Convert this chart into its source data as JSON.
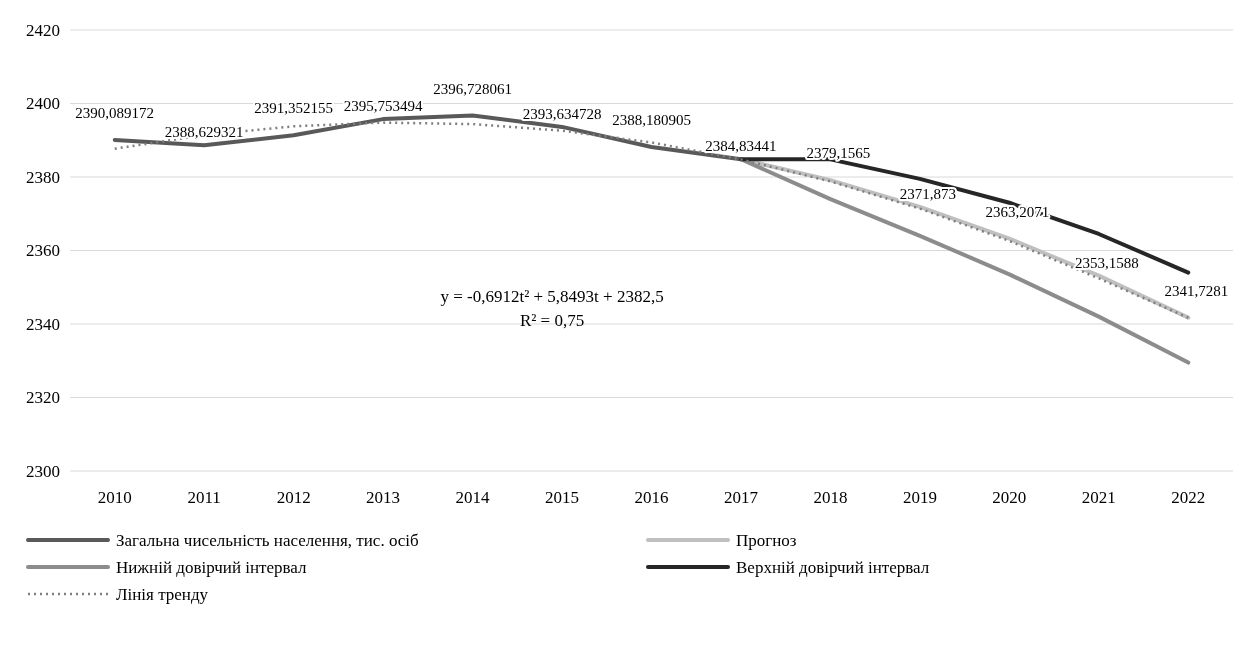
{
  "chart_data": {
    "type": "line",
    "categories": [
      "2010",
      "2011",
      "2012",
      "2013",
      "2014",
      "2015",
      "2016",
      "2017",
      "2018",
      "2019",
      "2020",
      "2021",
      "2022"
    ],
    "ylim": [
      2300,
      2420
    ],
    "yticks": [
      2300,
      2320,
      2340,
      2360,
      2380,
      2400,
      2420
    ],
    "grid": "y",
    "legend": "bottom",
    "annotations": [
      "y = -0,6912t² + 5,8493t + 2382,5",
      "R² = 0,75"
    ],
    "series": [
      {
        "name": "Загальна чисельність населення, тис. осіб",
        "color": "#595959",
        "values": [
          2390.089172,
          2388.629321,
          2391.352155,
          2395.753494,
          2396.728061,
          2393.634728,
          2388.180905,
          2384.83441,
          null,
          null,
          null,
          null,
          null
        ],
        "value_labels": [
          "2390,089172",
          "2388,629321",
          "2391,352155",
          "2395,753494",
          "2396,728061",
          "2393,634728",
          "2388,180905",
          "2384,83441",
          null,
          null,
          null,
          null,
          null
        ]
      },
      {
        "name": "Прогноз",
        "color": "#bfbfbf",
        "values": [
          null,
          null,
          null,
          null,
          null,
          null,
          null,
          2384.83441,
          2379.1565,
          2371.873,
          2363.2071,
          2353.1588,
          2341.7281
        ],
        "value_labels": [
          null,
          null,
          null,
          null,
          null,
          null,
          null,
          null,
          "2379,1565",
          "2371,873",
          "2363,2071",
          "2353,1588",
          "2341,7281"
        ]
      },
      {
        "name": "Нижній довірчий інтервал",
        "color": "#8c8c8c",
        "values": [
          null,
          null,
          null,
          null,
          null,
          null,
          null,
          2384.83,
          2374,
          2364,
          2353.5,
          2342,
          2329.5
        ]
      },
      {
        "name": "Верхній довірчий інтервал",
        "color": "#262626",
        "values": [
          null,
          null,
          null,
          null,
          null,
          null,
          null,
          2384.83,
          2384.8,
          2379.5,
          2373,
          2364.5,
          2354
        ]
      },
      {
        "name": "Лінія тренду",
        "color": "#7f7f7f",
        "line_style": "dotted",
        "values": [
          2387.7,
          2391.4,
          2393.8,
          2394.8,
          2394.4,
          2392.6,
          2389.4,
          2384.8,
          2378.8,
          2371.4,
          2362.6,
          2352.4,
          2341.7
        ]
      }
    ]
  }
}
